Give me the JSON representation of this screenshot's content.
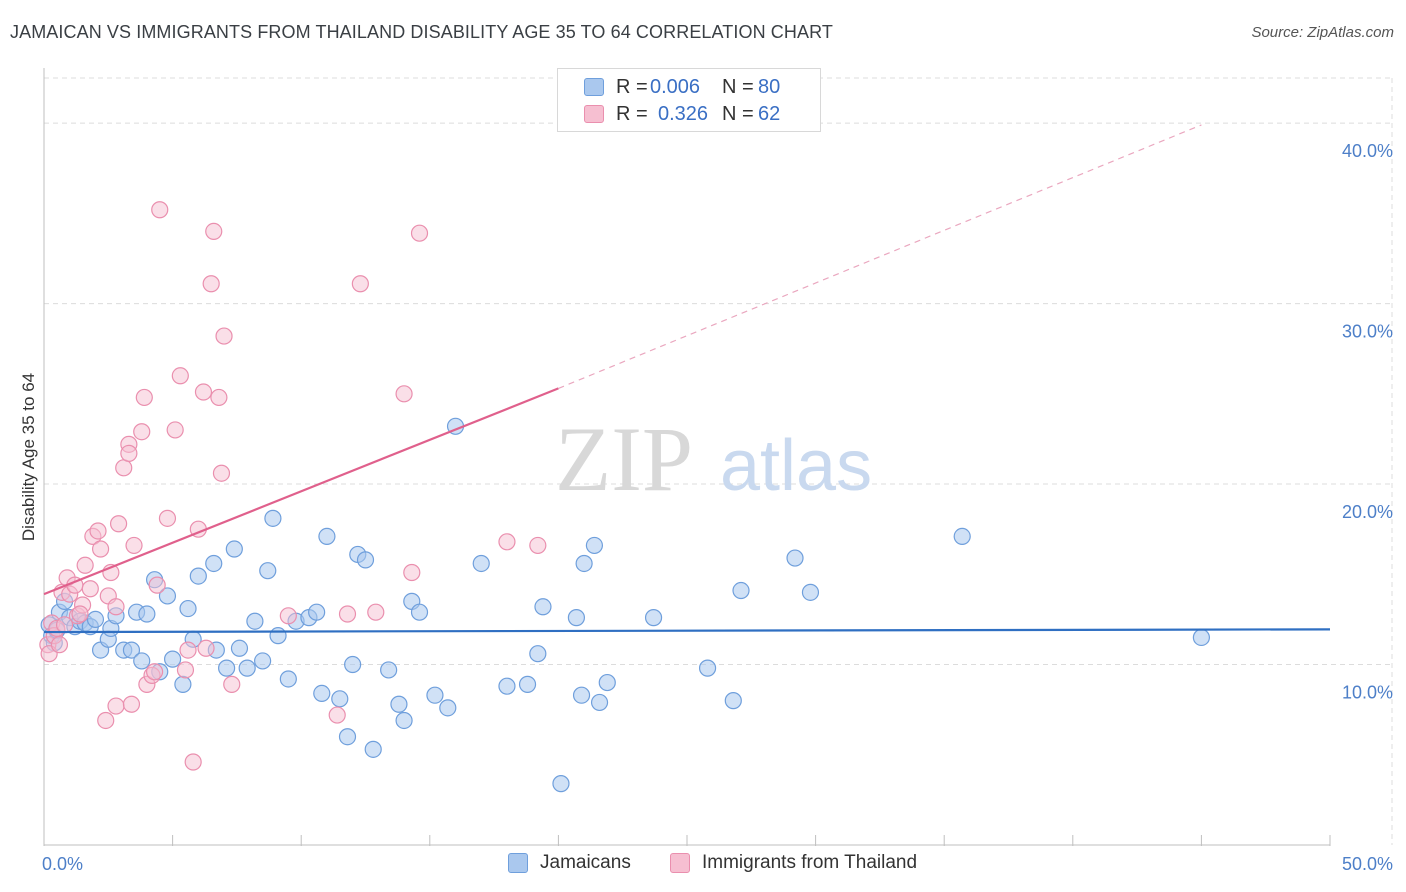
{
  "title": "JAMAICAN VS IMMIGRANTS FROM THAILAND DISABILITY AGE 35 TO 64 CORRELATION CHART",
  "source": "Source: ZipAtlas.com",
  "watermark": {
    "part1": "ZIP",
    "part2": "atlas"
  },
  "legend_top": {
    "rows": [
      {
        "r_label": "R =",
        "r_value": "0.006",
        "n_label": "N =",
        "n_value": "80"
      },
      {
        "r_label": "R =",
        "r_value": "0.326",
        "n_label": "N =",
        "n_value": "62"
      }
    ]
  },
  "legend_bottom": {
    "items": [
      {
        "label": "Jamaicans"
      },
      {
        "label": "Immigrants from Thailand"
      }
    ]
  },
  "colors": {
    "blue_fill": "#aac8ee",
    "blue_stroke": "#6f9fdc",
    "blue_line": "#2f6fc2",
    "pink_fill": "#f6bfd1",
    "pink_stroke": "#ea8fae",
    "pink_line": "#e0608c",
    "grid": "#dcdcdc",
    "axis_text": "#4d7fc8"
  },
  "chart_data": {
    "type": "scatter",
    "title": "JAMAICAN VS IMMIGRANTS FROM THAILAND DISABILITY AGE 35 TO 64 CORRELATION CHART",
    "xlabel": "",
    "ylabel": "Disability Age 35 to 64",
    "xlim": [
      0,
      50
    ],
    "ylim": [
      0,
      42.5
    ],
    "x_tick_labels": [
      {
        "value": 0,
        "label": "0.0%"
      },
      {
        "value": 50,
        "label": "50.0%"
      }
    ],
    "y_tick_labels": [
      {
        "value": 10,
        "label": "10.0%"
      },
      {
        "value": 20,
        "label": "20.0%"
      },
      {
        "value": 30,
        "label": "30.0%"
      },
      {
        "value": 40,
        "label": "40.0%"
      }
    ],
    "series": [
      {
        "name": "Jamaicans",
        "r": 0.006,
        "n": 80,
        "trend": {
          "x0": 0,
          "y0": 11.8,
          "x1": 50,
          "y1": 11.95,
          "style": "solid"
        },
        "points": [
          [
            0.2,
            12.2
          ],
          [
            0.3,
            11.6
          ],
          [
            0.4,
            11.2
          ],
          [
            0.5,
            11.9
          ],
          [
            0.6,
            12.9
          ],
          [
            0.8,
            13.5
          ],
          [
            1.0,
            12.6
          ],
          [
            1.2,
            12.1
          ],
          [
            1.4,
            12.4
          ],
          [
            1.6,
            12.3
          ],
          [
            1.8,
            12.1
          ],
          [
            2.0,
            12.5
          ],
          [
            2.2,
            10.8
          ],
          [
            2.5,
            11.4
          ],
          [
            2.6,
            12.0
          ],
          [
            2.8,
            12.7
          ],
          [
            3.1,
            10.8
          ],
          [
            3.4,
            10.8
          ],
          [
            3.6,
            12.9
          ],
          [
            3.8,
            10.2
          ],
          [
            4.0,
            12.8
          ],
          [
            4.3,
            14.7
          ],
          [
            4.5,
            9.6
          ],
          [
            4.8,
            13.8
          ],
          [
            5.0,
            10.3
          ],
          [
            5.4,
            8.9
          ],
          [
            5.6,
            13.1
          ],
          [
            5.8,
            11.4
          ],
          [
            6.0,
            14.9
          ],
          [
            6.6,
            15.6
          ],
          [
            6.7,
            10.8
          ],
          [
            7.1,
            9.8
          ],
          [
            7.4,
            16.4
          ],
          [
            7.6,
            10.9
          ],
          [
            7.9,
            9.8
          ],
          [
            8.2,
            12.4
          ],
          [
            8.5,
            10.2
          ],
          [
            8.7,
            15.2
          ],
          [
            8.9,
            18.1
          ],
          [
            9.1,
            11.6
          ],
          [
            9.5,
            9.2
          ],
          [
            9.8,
            12.4
          ],
          [
            10.3,
            12.6
          ],
          [
            10.6,
            12.9
          ],
          [
            10.8,
            8.4
          ],
          [
            11.0,
            17.1
          ],
          [
            11.5,
            8.1
          ],
          [
            11.8,
            6.0
          ],
          [
            12.0,
            10.0
          ],
          [
            12.2,
            16.1
          ],
          [
            12.5,
            15.8
          ],
          [
            12.8,
            5.3
          ],
          [
            13.4,
            9.7
          ],
          [
            13.8,
            7.8
          ],
          [
            14.0,
            6.9
          ],
          [
            14.3,
            13.5
          ],
          [
            14.6,
            12.9
          ],
          [
            15.2,
            8.3
          ],
          [
            15.7,
            7.6
          ],
          [
            16.0,
            23.2
          ],
          [
            17.0,
            15.6
          ],
          [
            18.0,
            8.8
          ],
          [
            18.8,
            8.9
          ],
          [
            19.2,
            10.6
          ],
          [
            19.4,
            13.2
          ],
          [
            20.1,
            3.4
          ],
          [
            20.7,
            12.6
          ],
          [
            20.9,
            8.3
          ],
          [
            21.0,
            15.6
          ],
          [
            21.4,
            16.6
          ],
          [
            21.6,
            7.9
          ],
          [
            21.9,
            9.0
          ],
          [
            23.7,
            12.6
          ],
          [
            25.8,
            9.8
          ],
          [
            26.8,
            8.0
          ],
          [
            27.1,
            14.1
          ],
          [
            29.2,
            15.9
          ],
          [
            29.8,
            14.0
          ],
          [
            35.7,
            17.1
          ],
          [
            45.0,
            11.5
          ]
        ]
      },
      {
        "name": "Immigrants from Thailand",
        "r": 0.326,
        "n": 62,
        "trend": {
          "x0": 0,
          "y0": 13.9,
          "x1": 20,
          "y1": 25.3,
          "style": "solid",
          "extended": {
            "x1": 45,
            "y1": 39.9,
            "style": "dashed"
          }
        },
        "points": [
          [
            0.15,
            11.1
          ],
          [
            0.2,
            10.6
          ],
          [
            0.3,
            12.3
          ],
          [
            0.4,
            11.6
          ],
          [
            0.5,
            12.0
          ],
          [
            0.6,
            11.1
          ],
          [
            0.7,
            14.0
          ],
          [
            0.9,
            14.8
          ],
          [
            1.0,
            13.9
          ],
          [
            1.2,
            14.4
          ],
          [
            1.3,
            12.7
          ],
          [
            1.5,
            13.3
          ],
          [
            1.6,
            15.5
          ],
          [
            1.8,
            14.2
          ],
          [
            1.9,
            17.1
          ],
          [
            2.1,
            17.4
          ],
          [
            2.2,
            16.4
          ],
          [
            2.5,
            13.8
          ],
          [
            2.6,
            15.1
          ],
          [
            2.8,
            13.2
          ],
          [
            2.9,
            17.8
          ],
          [
            2.8,
            7.7
          ],
          [
            3.1,
            20.9
          ],
          [
            3.3,
            22.2
          ],
          [
            3.3,
            21.7
          ],
          [
            3.5,
            16.6
          ],
          [
            3.4,
            7.8
          ],
          [
            3.8,
            22.9
          ],
          [
            3.9,
            24.8
          ],
          [
            4.0,
            8.9
          ],
          [
            4.2,
            9.4
          ],
          [
            4.3,
            9.6
          ],
          [
            4.5,
            35.2
          ],
          [
            4.4,
            14.4
          ],
          [
            4.8,
            18.1
          ],
          [
            5.1,
            23.0
          ],
          [
            5.3,
            26.0
          ],
          [
            5.5,
            9.7
          ],
          [
            5.6,
            10.8
          ],
          [
            5.8,
            4.6
          ],
          [
            6.0,
            17.5
          ],
          [
            6.2,
            25.1
          ],
          [
            6.3,
            10.9
          ],
          [
            6.5,
            31.1
          ],
          [
            6.6,
            34.0
          ],
          [
            6.8,
            24.8
          ],
          [
            6.9,
            20.6
          ],
          [
            7.0,
            28.2
          ],
          [
            7.3,
            8.9
          ],
          [
            9.5,
            12.7
          ],
          [
            11.4,
            7.2
          ],
          [
            11.8,
            12.8
          ],
          [
            12.3,
            31.1
          ],
          [
            12.9,
            12.9
          ],
          [
            14.0,
            25.0
          ],
          [
            14.3,
            15.1
          ],
          [
            14.6,
            33.9
          ],
          [
            18.0,
            16.8
          ],
          [
            19.2,
            16.6
          ],
          [
            2.4,
            6.9
          ],
          [
            0.8,
            12.2
          ],
          [
            1.4,
            12.8
          ]
        ]
      }
    ],
    "grid": true
  }
}
